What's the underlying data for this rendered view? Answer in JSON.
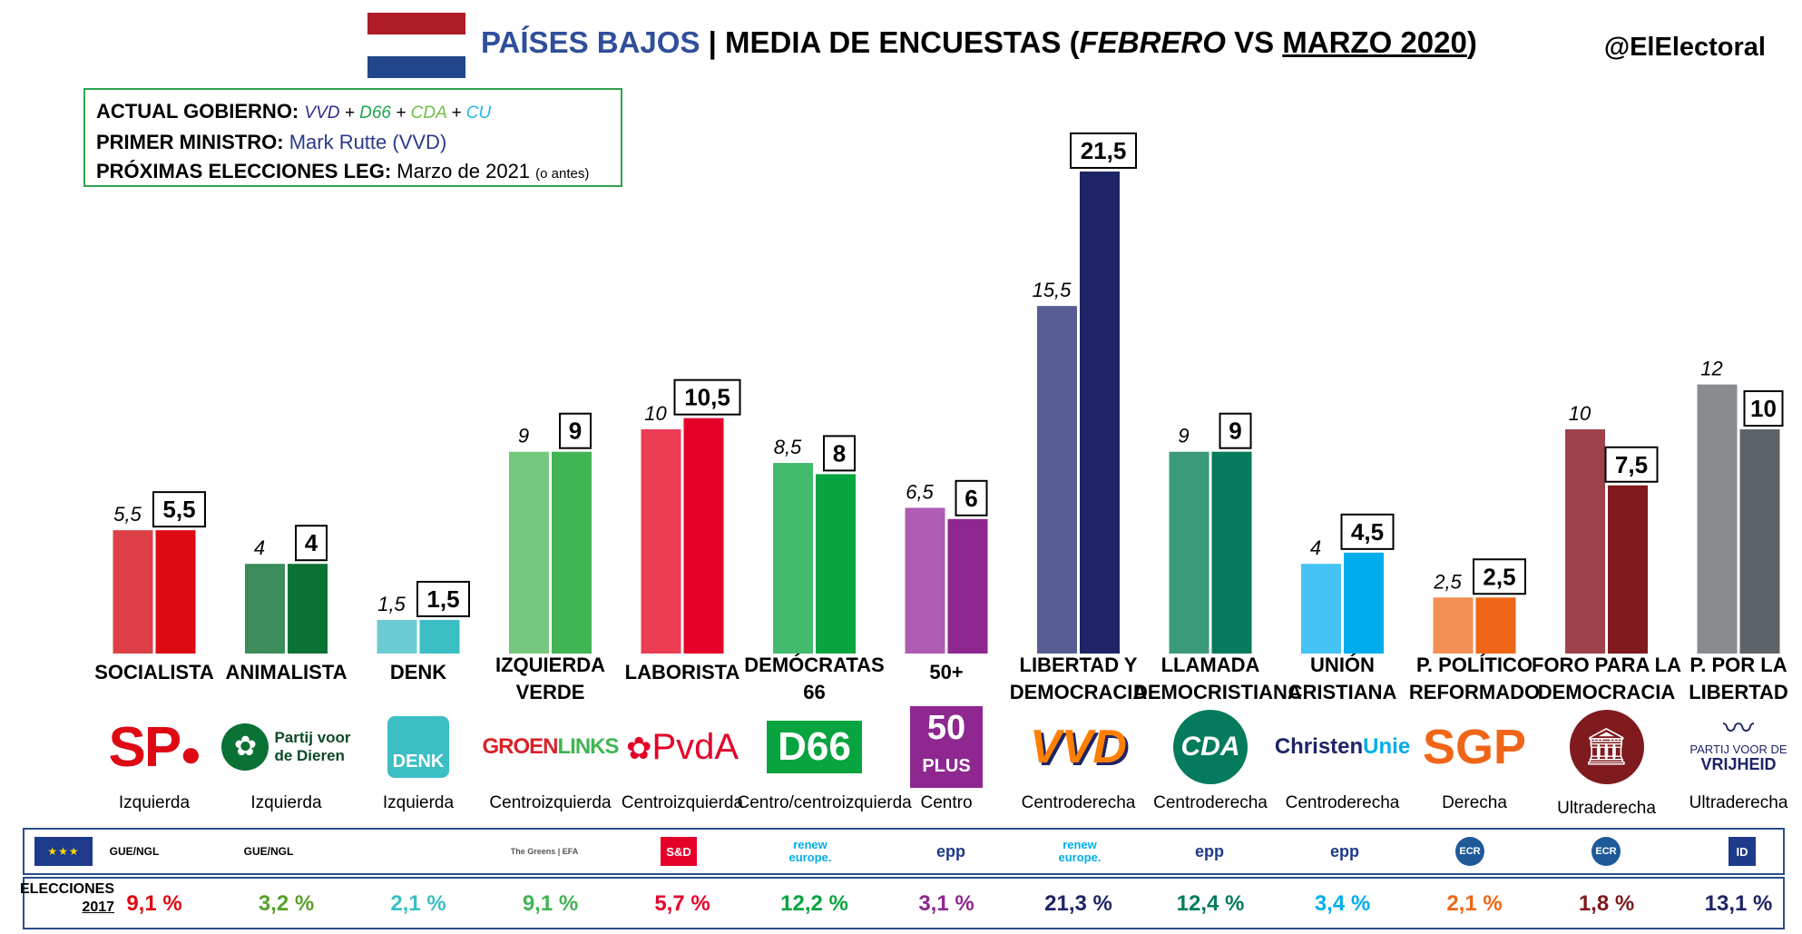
{
  "header": {
    "country": "PAÍSES BAJOS",
    "sep": " | MEDIA DE ENCUESTAS (",
    "feb": "FEBRERO",
    "vs": " VS ",
    "mar": "MARZO 2020",
    "close": ")",
    "handle": "@ElElectoral"
  },
  "flag_colors": [
    "#ae1c28",
    "#ffffff",
    "#21468b"
  ],
  "info": {
    "gov_label": "ACTUAL GOBIERNO:",
    "gov_parts": [
      {
        "text": "VVD",
        "color": "#2a2f8c"
      },
      {
        "text": " + ",
        "color": "#000000"
      },
      {
        "text": "D66",
        "color": "#1aa64a"
      },
      {
        "text": " + ",
        "color": "#000000"
      },
      {
        "text": "CDA",
        "color": "#6fbf45"
      },
      {
        "text": " + ",
        "color": "#000000"
      },
      {
        "text": "CU",
        "color": "#29b6e8"
      }
    ],
    "pm_label": "PRIMER MINISTRO:",
    "pm_value": "Mark Rutte (VVD)",
    "next_label": "PRÓXIMAS ELECCIONES LEG:",
    "next_value": "Marzo de 2021",
    "next_note": "(o antes)"
  },
  "chart_data": {
    "type": "bar",
    "series": [
      {
        "name": "FEBRERO",
        "values": [
          5.5,
          4,
          1.5,
          9,
          10,
          8.5,
          6.5,
          15.5,
          9,
          4,
          2.5,
          10,
          12
        ]
      },
      {
        "name": "MARZO 2020",
        "values": [
          5.5,
          4,
          1.5,
          9,
          10.5,
          8,
          6,
          21.5,
          9,
          4.5,
          2.5,
          7.5,
          10
        ]
      }
    ],
    "labels_feb": [
      "5,5",
      "4",
      "1,5",
      "9",
      "10",
      "8,5",
      "6,5",
      "15,5",
      "9",
      "4",
      "2,5",
      "10",
      "12"
    ],
    "labels_mar": [
      "5,5",
      "4",
      "1,5",
      "9",
      "10,5",
      "8",
      "6",
      "21,5",
      "9",
      "4,5",
      "2,5",
      "7,5",
      "10"
    ],
    "colors_feb": [
      "#dc3f47",
      "#3b8c5a",
      "#6ccbd2",
      "#76c77e",
      "#ec3d55",
      "#42bb6c",
      "#ae5cb4",
      "#565e94",
      "#3a9a7a",
      "#45c3f4",
      "#f29055",
      "#9e4249",
      "#888c8f"
    ],
    "colors_mar": [
      "#dd0a14",
      "#0b7236",
      "#3bbfc4",
      "#41b553",
      "#e5002a",
      "#07a43f",
      "#8e2790",
      "#1e2466",
      "#047b5c",
      "#00adec",
      "#ef6618",
      "#7f1a1e",
      "#5e6367"
    ]
  },
  "parties": [
    {
      "name": [
        "SOCIALISTA"
      ],
      "logo": "SP.",
      "logo_icon": "sp-logo",
      "ideology": "Izquierda",
      "result": "9,1 %",
      "result_color": "#dd0a14"
    },
    {
      "name": [
        "ANIMALISTA"
      ],
      "logo": "Partij voor de Dieren",
      "logo_icon": "pvdd-logo",
      "ideology": "Izquierda",
      "result": "3,2 %",
      "result_color": "#5aa02c"
    },
    {
      "name": [
        "DENK"
      ],
      "logo": "DENK",
      "logo_icon": "denk-logo",
      "ideology": "Izquierda",
      "result": "2,1 %",
      "result_color": "#3bbfc4"
    },
    {
      "name": [
        "IZQUIERDA",
        "VERDE"
      ],
      "logo": "GROENLINKS",
      "logo_icon": "groenlinks-logo",
      "ideology": "Centroizquierda",
      "result": "9,1 %",
      "result_color": "#41b553"
    },
    {
      "name": [
        "LABORISTA"
      ],
      "logo": "PvdA",
      "logo_icon": "pvda-logo",
      "ideology": "Centroizquierda",
      "result": "5,7 %",
      "result_color": "#e5002a"
    },
    {
      "name": [
        "DEMÓCRATAS",
        "66"
      ],
      "logo": "D66",
      "logo_icon": "d66-logo",
      "ideology": "Centro/centroizquierda",
      "result": "12,2 %",
      "result_color": "#07a43f"
    },
    {
      "name": [
        "50+"
      ],
      "logo": "50 PLUS",
      "logo_icon": "50plus-logo",
      "ideology": "Centro",
      "result": "3,1 %",
      "result_color": "#8e2790"
    },
    {
      "name": [
        "LIBERTAD Y",
        "DEMOCRACIA"
      ],
      "logo": "VVD",
      "logo_icon": "vvd-logo",
      "ideology": "Centroderecha",
      "result": "21,3 %",
      "result_color": "#1e2466"
    },
    {
      "name": [
        "LLAMADA",
        "DEMOCRISTIANA"
      ],
      "logo": "CDA",
      "logo_icon": "cda-logo",
      "ideology": "Centroderecha",
      "result": "12,4  %",
      "result_color": "#047b5c"
    },
    {
      "name": [
        "UNIÓN",
        "CRISTIANA"
      ],
      "logo": "ChristenUnie",
      "logo_icon": "christenunie-logo",
      "ideology": "Centroderecha",
      "result": "3,4 %",
      "result_color": "#00adec"
    },
    {
      "name": [
        "P. POLÍTICO",
        "REFORMADO"
      ],
      "logo": "SGP",
      "logo_icon": "sgp-logo",
      "ideology": "Derecha",
      "result": "2,1 %",
      "result_color": "#ef6618"
    },
    {
      "name": [
        "FORO PARA LA",
        "DEMOCRACIA"
      ],
      "logo": "",
      "logo_icon": "fvd-logo",
      "ideology": "Ultraderecha",
      "result": "1,8 %",
      "result_color": "#7f1a1e"
    },
    {
      "name": [
        "P. POR LA",
        "LIBERTAD"
      ],
      "logo": "PARTIJ VOOR DE VRIJHEID",
      "logo_icon": "pvv-logo",
      "ideology": "Ultraderecha",
      "result": "13,1 %",
      "result_color": "#1e2466"
    }
  ],
  "eu_groups": [
    {
      "label": "",
      "icon": "eu-flag-icon"
    },
    {
      "label": "GUE/NGL",
      "icon": "gue-ngl-logo"
    },
    {
      "label": "GUE/NGL",
      "icon": "gue-ngl-logo"
    },
    {
      "label": "",
      "icon": "none"
    },
    {
      "label": "The Greens | EFA",
      "icon": "greens-efa-logo"
    },
    {
      "label": "S&D",
      "icon": "sd-logo"
    },
    {
      "label": "renew europe.",
      "icon": "renew-logo"
    },
    {
      "label": "epp",
      "icon": "epp-logo"
    },
    {
      "label": "renew europe.",
      "icon": "renew-logo"
    },
    {
      "label": "epp",
      "icon": "epp-logo"
    },
    {
      "label": "epp",
      "icon": "epp-logo"
    },
    {
      "label": "ECR",
      "icon": "ecr-logo"
    },
    {
      "label": "ECR",
      "icon": "ecr-logo"
    },
    {
      "label": "ID",
      "icon": "id-logo"
    }
  ],
  "elections": {
    "label_1": "ELECCIONES",
    "label_2": "2017"
  }
}
